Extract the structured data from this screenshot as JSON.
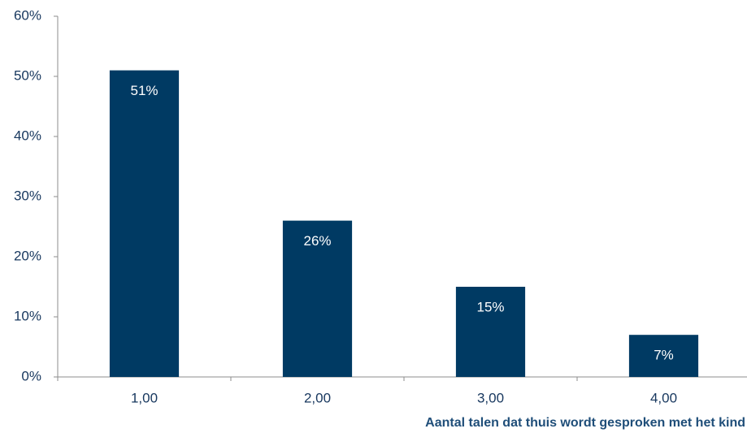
{
  "chart_data": {
    "type": "bar",
    "xlabel": "Aantal talen dat thuis wordt gesproken met het kind",
    "categories": [
      "1,00",
      "2,00",
      "3,00",
      "4,00"
    ],
    "values": [
      51,
      26,
      15,
      7
    ],
    "value_labels": [
      "51%",
      "26%",
      "15%",
      "7%"
    ],
    "color": "#003a63",
    "ylim": [
      0,
      60
    ],
    "yticks": [
      {
        "value": 0,
        "label": "0%"
      },
      {
        "value": 10,
        "label": "10%"
      },
      {
        "value": 20,
        "label": "20%"
      },
      {
        "value": 30,
        "label": "30%"
      },
      {
        "value": 40,
        "label": "40%"
      },
      {
        "value": 50,
        "label": "50%"
      },
      {
        "value": 60,
        "label": "60%"
      }
    ],
    "grid": false
  }
}
